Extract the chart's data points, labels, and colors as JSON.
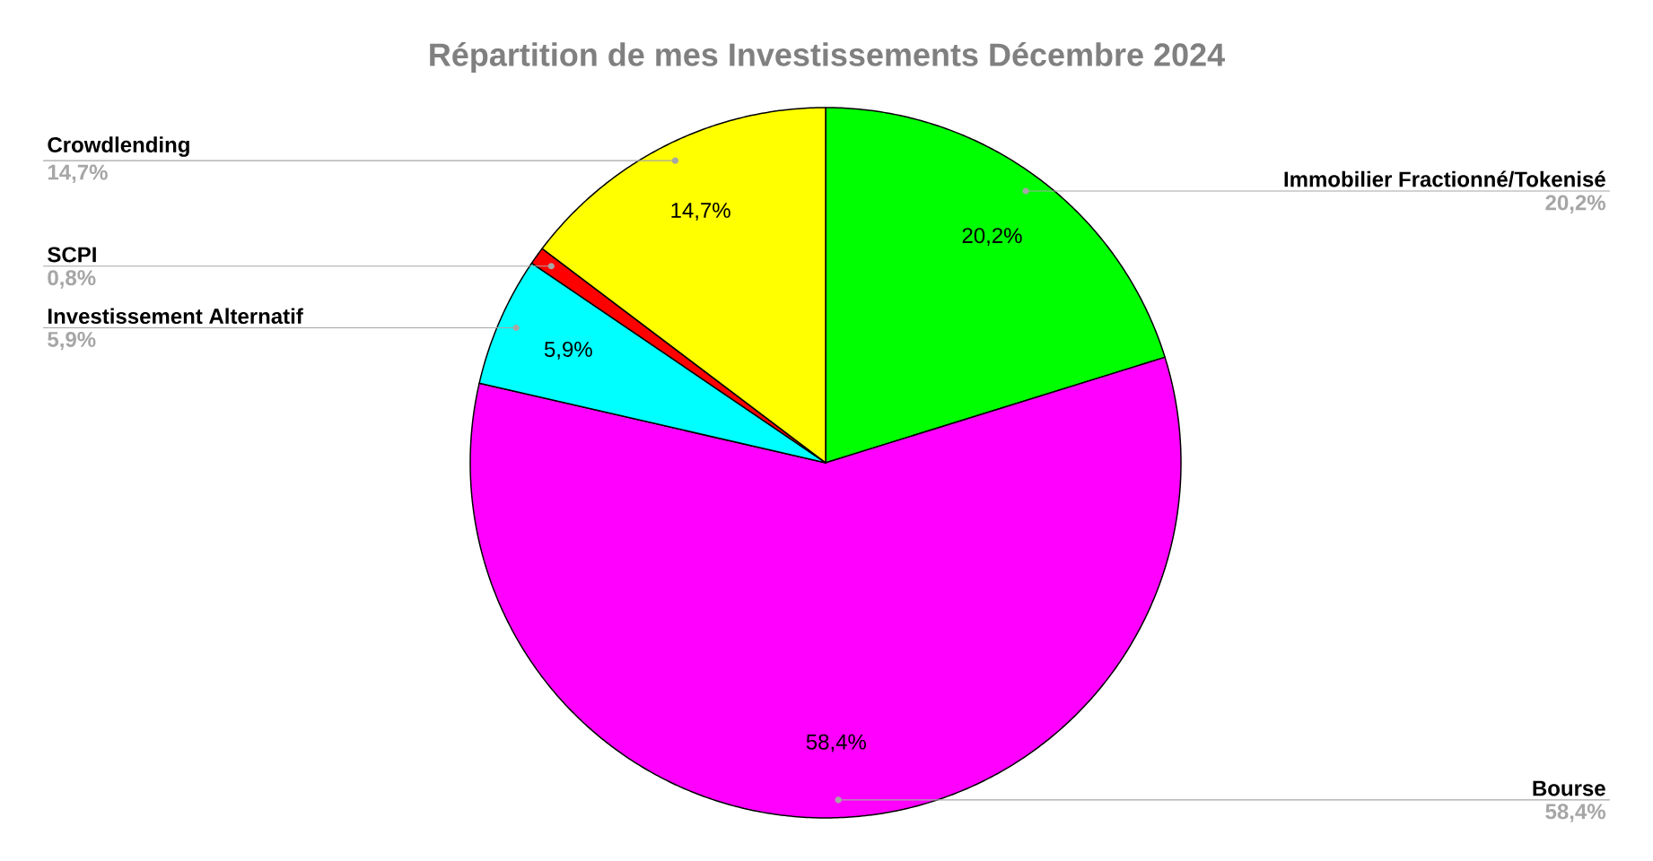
{
  "chart_data": {
    "type": "pie",
    "title": "Répartition de mes Investissements Décembre 2024",
    "categories": [
      "Immobilier Fractionné/Tokenisé",
      "Bourse",
      "Investissement Alternatif",
      "SCPI",
      "Crowdlending"
    ],
    "values": [
      20.2,
      58.4,
      5.9,
      0.8,
      14.7
    ],
    "value_labels": [
      "20,2%",
      "58,4%",
      "5,9%",
      "0,8%",
      "14,7%"
    ],
    "colors": [
      "#00ff00",
      "#ff00ff",
      "#00ffff",
      "#ff0000",
      "#ffff00"
    ]
  }
}
